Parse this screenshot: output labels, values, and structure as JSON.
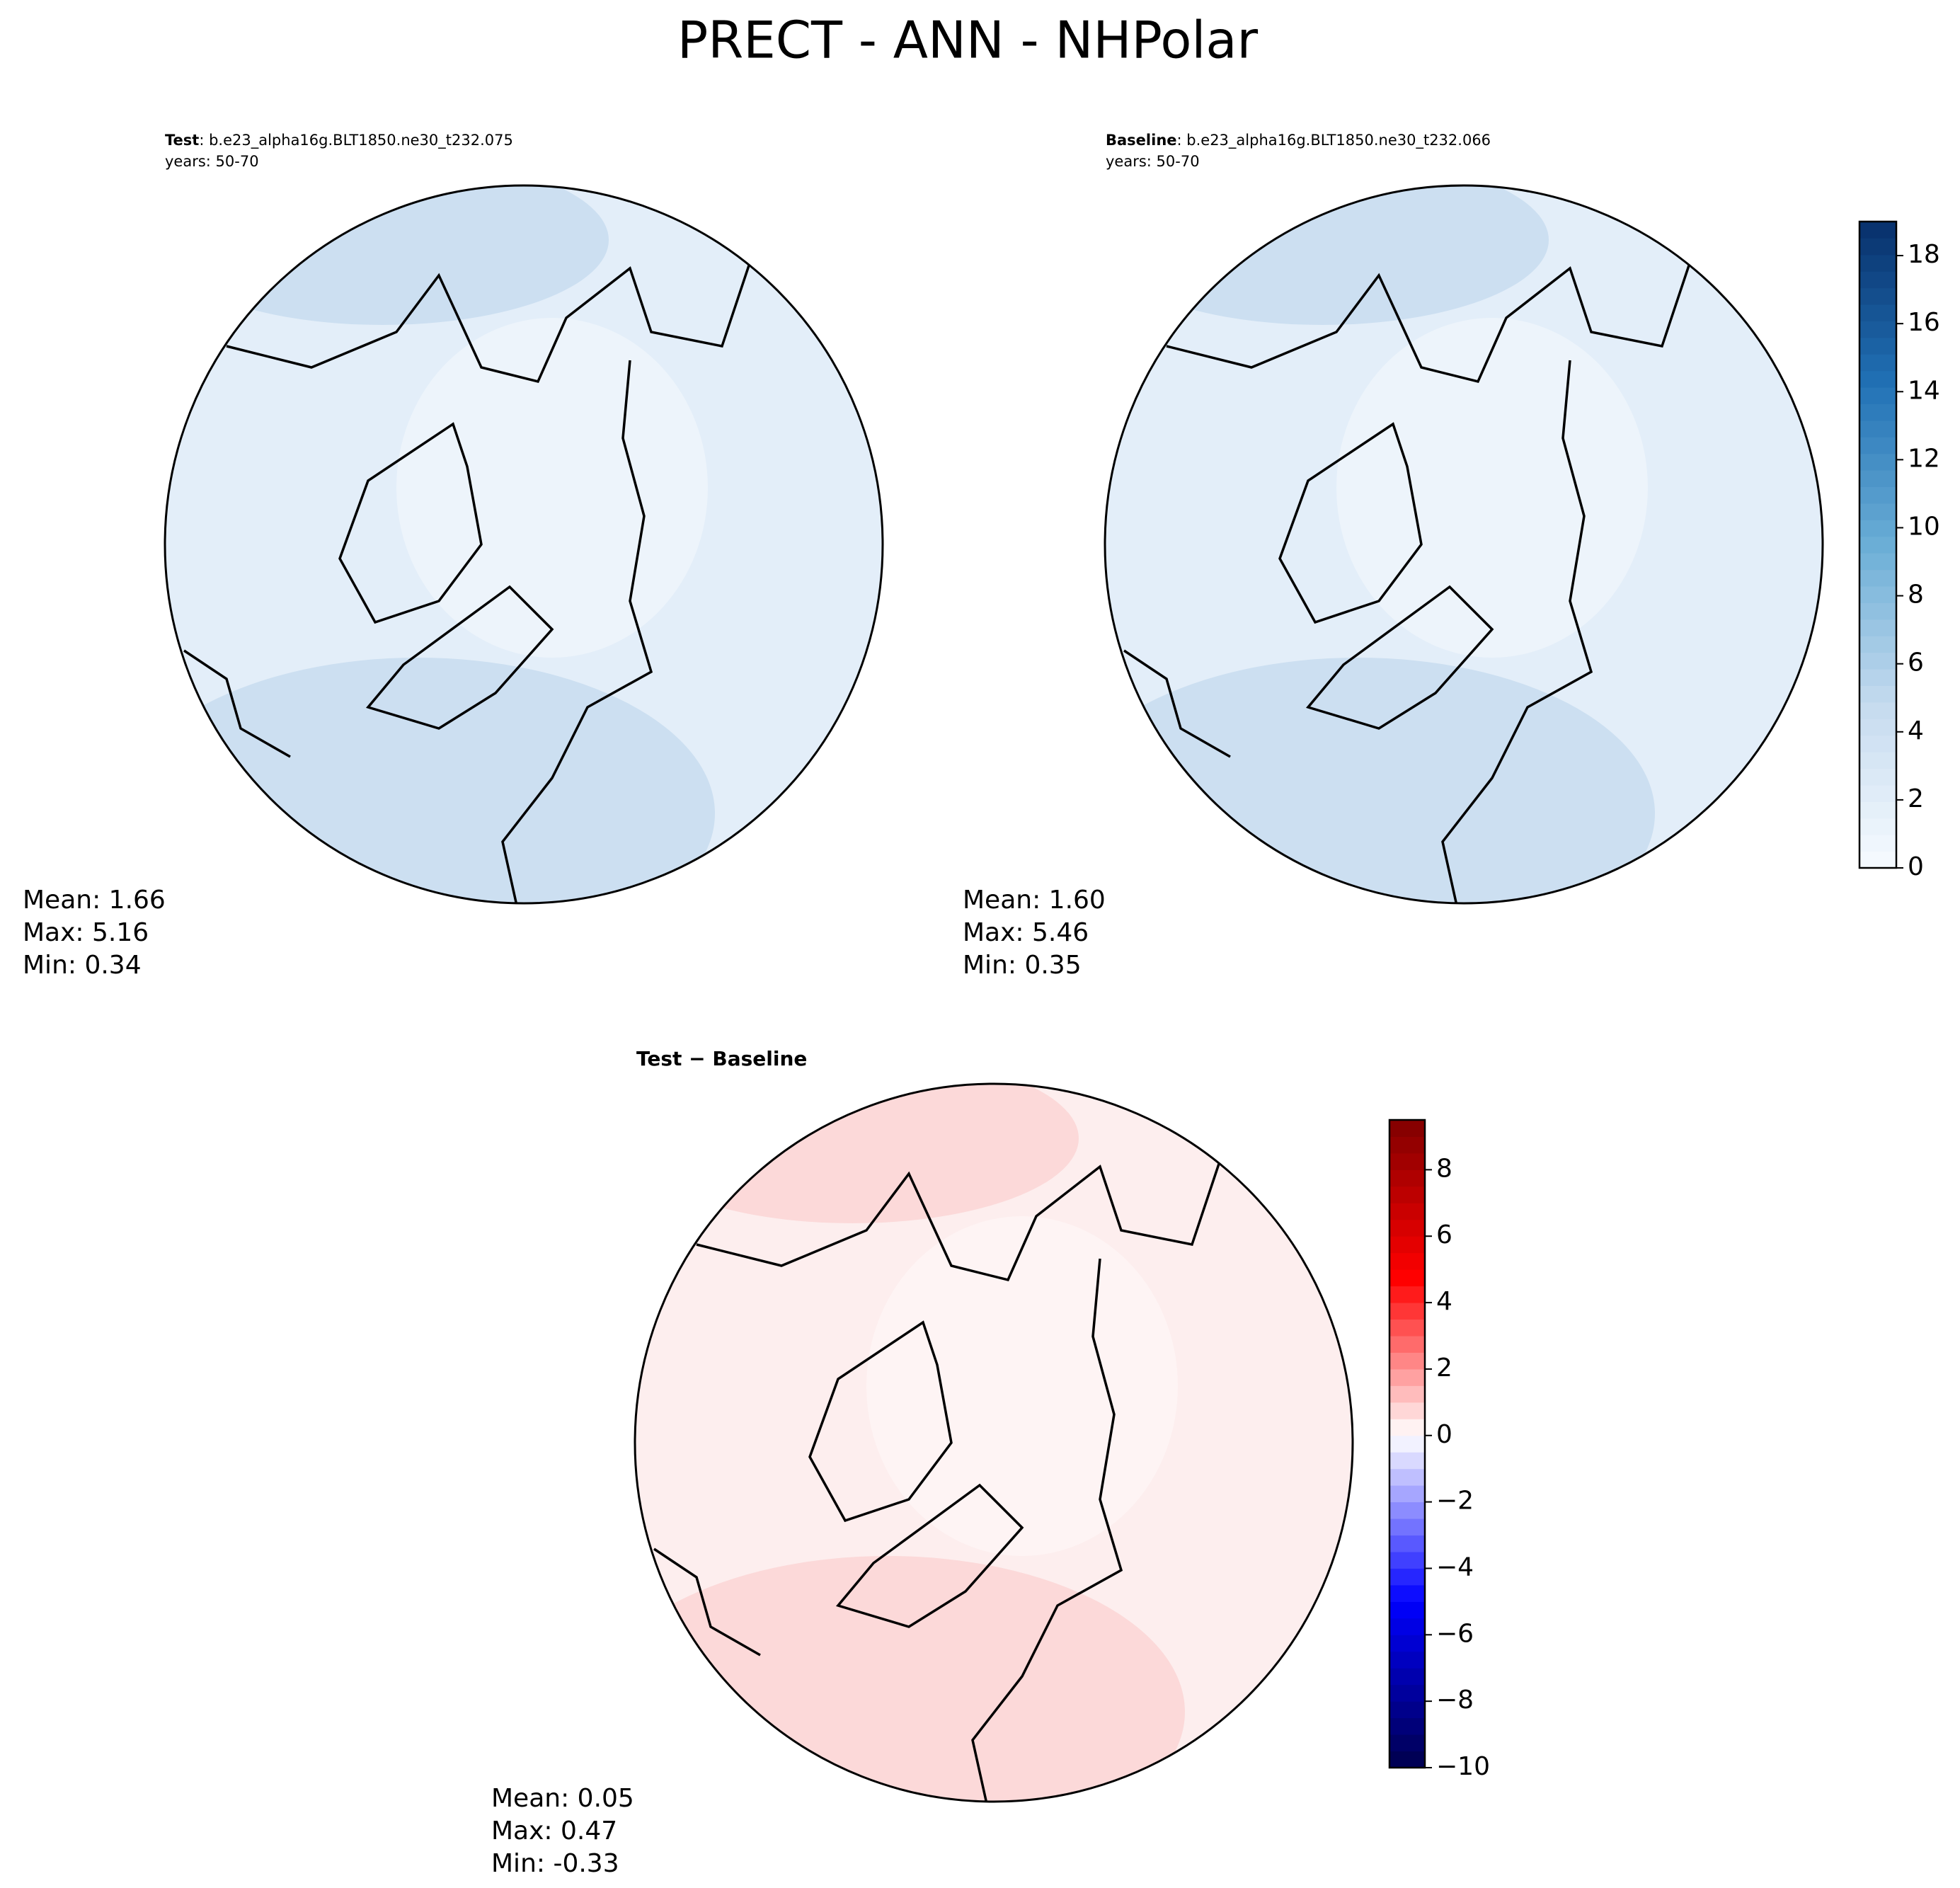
{
  "title": "PRECT - ANN - NHPolar",
  "panels": [
    {
      "name": "Test",
      "case": ": b.e23_alpha16g.BLT1850.ne30_t232.075",
      "years": "years: 50-70",
      "stats": [
        "Mean:  1.66",
        "Max:  5.16",
        "Min:  0.34"
      ],
      "fill": "#e3eef9",
      "shade": "#c6dbef"
    },
    {
      "name": "Baseline",
      "case": ": b.e23_alpha16g.BLT1850.ne30_t232.066",
      "years": "years: 50-70",
      "stats": [
        "Mean:  1.60",
        "Max:  5.46",
        "Min:  0.35"
      ],
      "fill": "#e3eef9",
      "shade": "#c6dbef"
    },
    {
      "name": "Test − Baseline",
      "stats": [
        "Mean:  0.05",
        "Max:  0.47",
        "Min: -0.33"
      ],
      "fill": "#fdeeee",
      "shade": "#fbd3d3"
    }
  ],
  "colorbars": [
    {
      "ylim": [
        0,
        19
      ],
      "yticks": [
        0,
        2,
        4,
        6,
        8,
        10,
        12,
        14,
        16,
        18
      ],
      "cmap": [
        "#f7fbff",
        "#c6dbef",
        "#6baed6",
        "#2171b5",
        "#08306b"
      ]
    },
    {
      "ylim": [
        -10,
        9.5
      ],
      "yticks": [
        {
          "value": -10,
          "label": "−10"
        },
        {
          "value": -8,
          "label": "−8"
        },
        {
          "value": -6,
          "label": "−6"
        },
        {
          "value": -4,
          "label": "−4"
        },
        {
          "value": -2,
          "label": "−2"
        },
        0,
        2,
        4,
        6,
        8
      ],
      "cmap": [
        "#00004c",
        "#0000ff",
        "#ffffff",
        "#ff0000",
        "#800000"
      ],
      "diverging": true
    }
  ]
}
